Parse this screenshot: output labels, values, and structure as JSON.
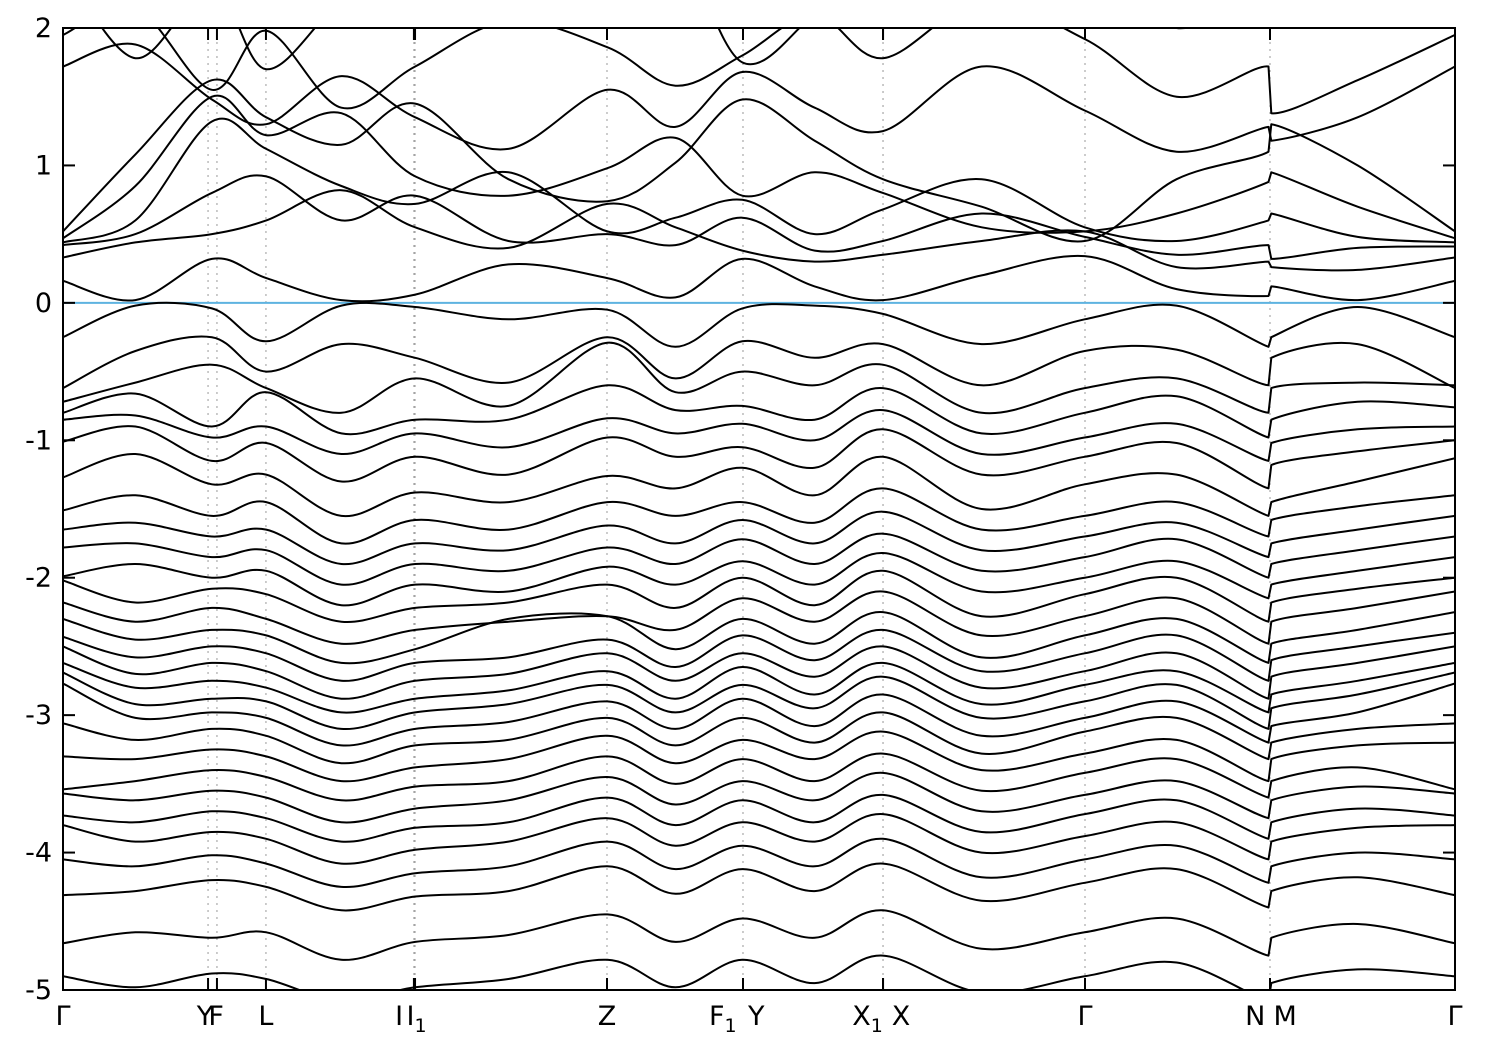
{
  "figure": {
    "kind": "electronic band structure plot (gnuplot style)",
    "background": "#ffffff"
  },
  "chart_data": {
    "type": "line",
    "title": "",
    "xlabel": "",
    "ylabel": "",
    "ylim": [
      -5,
      2
    ],
    "grid": "vertical dashed at high-symmetry points",
    "legend": "none",
    "yticks": [
      2,
      1,
      0,
      -1,
      -2,
      -3,
      -4,
      -5
    ],
    "xticks": [
      {
        "label": "Γ",
        "sub": "",
        "tick_t": 0.0,
        "label_t": 0.0
      },
      {
        "label": "Y",
        "sub": "",
        "tick_t": 0.1042,
        "label_t": 0.102
      },
      {
        "label": "F",
        "sub": "",
        "tick_t": 0.1106,
        "label_t": 0.11
      },
      {
        "label": "L",
        "sub": "",
        "tick_t": 0.1458,
        "label_t": 0.1458
      },
      {
        "label": "I",
        "sub": "",
        "tick_t": 0.2521,
        "label_t": 0.2415
      },
      {
        "label": "I",
        "sub": "1",
        "tick_t": 0.2529,
        "label_t": 0.254
      },
      {
        "label": "Z",
        "sub": "",
        "tick_t": 0.3908,
        "label_t": 0.3908
      },
      {
        "label": "F",
        "sub": "1",
        "tick_t": 0.4885,
        "label_t": 0.474
      },
      {
        "label": "Y",
        "sub": "",
        "tick_t": 0.4885,
        "label_t": 0.498
      },
      {
        "label": "X",
        "sub": "1",
        "tick_t": 0.5891,
        "label_t": 0.578
      },
      {
        "label": "X",
        "sub": "",
        "tick_t": 0.5891,
        "label_t": 0.602
      },
      {
        "label": "Γ",
        "sub": "",
        "tick_t": 0.7342,
        "label_t": 0.7342
      },
      {
        "label": "N",
        "sub": "",
        "tick_t": 0.8671,
        "label_t": 0.8565
      },
      {
        "label": "M",
        "sub": "",
        "tick_t": 0.8671,
        "label_t": 0.878
      },
      {
        "label": "Γ",
        "sub": "",
        "tick_t": 1.0,
        "label_t": 1.0
      }
    ],
    "fermi_level": 0,
    "colors": {
      "band": "#000000",
      "fermi_line": "#5eb3e0",
      "grid": "#9a9a9a",
      "border": "#000000",
      "tick_label": "#000000"
    },
    "band_stations_t": [
      0,
      0.052,
      0.107,
      0.146,
      0.2,
      0.253,
      0.32,
      0.391,
      0.44,
      0.488,
      0.54,
      0.589,
      0.66,
      0.734,
      0.8,
      0.866,
      0.868,
      0.93,
      1.0
    ],
    "bands": [
      [
        2.45,
        1.78,
        2.3,
        1.7,
        2.2,
        2.5,
        2.05,
        2.45,
        2.6,
        1.75,
        2.1,
        2.5,
        2.25,
        2.55,
        2.0,
        2.35,
        2.15,
        2.5,
        2.3
      ],
      [
        1.95,
        2.15,
        1.55,
        1.98,
        1.42,
        1.72,
        2.05,
        1.86,
        1.58,
        1.8,
        2.1,
        1.78,
        2.2,
        1.92,
        1.5,
        1.72,
        1.38,
        1.62,
        1.95
      ],
      [
        1.72,
        1.88,
        1.48,
        1.3,
        1.65,
        1.35,
        1.12,
        1.55,
        1.28,
        1.68,
        1.42,
        1.25,
        1.72,
        1.4,
        1.1,
        1.28,
        1.18,
        1.35,
        1.72
      ],
      [
        0.52,
        1.08,
        1.62,
        1.35,
        1.15,
        1.45,
        0.9,
        0.74,
        1.02,
        1.48,
        1.18,
        0.9,
        0.7,
        0.45,
        0.9,
        1.1,
        1.3,
        1.0,
        0.52
      ],
      [
        0.47,
        0.85,
        1.5,
        1.22,
        1.38,
        0.92,
        0.78,
        0.98,
        1.2,
        0.78,
        0.95,
        0.8,
        0.55,
        0.52,
        0.65,
        0.88,
        0.95,
        0.7,
        0.47
      ],
      [
        0.44,
        0.6,
        1.32,
        1.12,
        0.85,
        0.72,
        0.95,
        0.52,
        0.62,
        0.75,
        0.5,
        0.68,
        0.9,
        0.55,
        0.45,
        0.6,
        0.65,
        0.48,
        0.44
      ],
      [
        0.42,
        0.5,
        0.8,
        0.92,
        0.6,
        0.78,
        0.45,
        0.5,
        0.42,
        0.62,
        0.38,
        0.45,
        0.65,
        0.48,
        0.35,
        0.42,
        0.32,
        0.4,
        0.41
      ],
      [
        0.33,
        0.44,
        0.5,
        0.6,
        0.82,
        0.55,
        0.4,
        0.72,
        0.55,
        0.38,
        0.3,
        0.35,
        0.45,
        0.52,
        0.26,
        0.3,
        0.26,
        0.24,
        0.33
      ],
      [
        0.16,
        0.02,
        0.32,
        0.18,
        0.02,
        0.06,
        0.28,
        0.18,
        0.04,
        0.32,
        0.12,
        0.02,
        0.2,
        0.34,
        0.1,
        0.05,
        0.12,
        0.02,
        0.16
      ],
      [
        -0.25,
        -0.02,
        -0.04,
        -0.28,
        -0.02,
        -0.03,
        -0.12,
        -0.05,
        -0.32,
        -0.04,
        -0.02,
        -0.08,
        -0.3,
        -0.12,
        -0.02,
        -0.32,
        -0.25,
        -0.03,
        -0.25
      ],
      [
        -0.62,
        -0.35,
        -0.25,
        -0.5,
        -0.3,
        -0.4,
        -0.58,
        -0.25,
        -0.55,
        -0.28,
        -0.4,
        -0.3,
        -0.6,
        -0.35,
        -0.34,
        -0.6,
        -0.4,
        -0.3,
        -0.62
      ],
      [
        -0.72,
        -0.58,
        -0.45,
        -0.62,
        -0.8,
        -0.55,
        -0.75,
        -0.29,
        -0.65,
        -0.5,
        -0.6,
        -0.45,
        -0.8,
        -0.62,
        -0.55,
        -0.8,
        -0.62,
        -0.58,
        -0.6
      ],
      [
        -0.8,
        -0.66,
        -0.9,
        -0.65,
        -0.95,
        -0.85,
        -0.85,
        -0.6,
        -0.78,
        -0.75,
        -0.85,
        -0.62,
        -0.95,
        -0.8,
        -0.68,
        -0.98,
        -0.85,
        -0.72,
        -0.76
      ],
      [
        -0.85,
        -0.82,
        -0.98,
        -0.9,
        -1.1,
        -0.95,
        -1.05,
        -0.84,
        -0.95,
        -0.88,
        -1.0,
        -0.78,
        -1.1,
        -0.98,
        -0.88,
        -1.15,
        -1.02,
        -0.92,
        -0.9
      ],
      [
        -1.01,
        -0.9,
        -1.15,
        -1.02,
        -1.3,
        -1.12,
        -1.25,
        -0.98,
        -1.12,
        -1.05,
        -1.2,
        -0.92,
        -1.25,
        -1.12,
        -1.02,
        -1.35,
        -1.18,
        -1.08,
        -1.0
      ],
      [
        -1.27,
        -1.1,
        -1.32,
        -1.25,
        -1.55,
        -1.38,
        -1.45,
        -1.26,
        -1.35,
        -1.2,
        -1.4,
        -1.12,
        -1.5,
        -1.32,
        -1.25,
        -1.55,
        -1.45,
        -1.3,
        -1.13
      ],
      [
        -1.51,
        -1.4,
        -1.55,
        -1.45,
        -1.75,
        -1.58,
        -1.65,
        -1.45,
        -1.55,
        -1.45,
        -1.6,
        -1.35,
        -1.65,
        -1.55,
        -1.45,
        -1.7,
        -1.58,
        -1.48,
        -1.4
      ],
      [
        -1.65,
        -1.6,
        -1.7,
        -1.65,
        -1.9,
        -1.75,
        -1.8,
        -1.62,
        -1.75,
        -1.58,
        -1.75,
        -1.52,
        -1.8,
        -1.7,
        -1.6,
        -1.85,
        -1.75,
        -1.65,
        -1.55
      ],
      [
        -1.78,
        -1.75,
        -1.85,
        -1.8,
        -2.05,
        -1.9,
        -1.95,
        -1.78,
        -1.9,
        -1.72,
        -1.9,
        -1.68,
        -1.95,
        -1.85,
        -1.72,
        -2.0,
        -1.9,
        -1.8,
        -1.7
      ],
      [
        -1.99,
        -1.9,
        -2.0,
        -1.95,
        -2.2,
        -2.05,
        -2.1,
        -1.92,
        -2.05,
        -1.88,
        -2.05,
        -1.82,
        -2.1,
        -2.0,
        -1.88,
        -2.15,
        -2.05,
        -1.95,
        -1.85
      ],
      [
        -2.02,
        -2.18,
        -2.08,
        -2.12,
        -2.32,
        -2.22,
        -2.18,
        -2.05,
        -2.22,
        -2.0,
        -2.2,
        -1.95,
        -2.28,
        -2.12,
        -2.0,
        -2.32,
        -2.18,
        -2.08,
        -2.0
      ],
      [
        -2.18,
        -2.32,
        -2.22,
        -2.3,
        -2.48,
        -2.38,
        -2.32,
        -2.28,
        -2.38,
        -2.15,
        -2.32,
        -2.1,
        -2.42,
        -2.28,
        -2.15,
        -2.48,
        -2.32,
        -2.22,
        -2.1
      ],
      [
        -2.3,
        -2.45,
        -2.38,
        -2.42,
        -2.62,
        -2.52,
        -2.3,
        -2.28,
        -2.52,
        -2.3,
        -2.48,
        -2.25,
        -2.58,
        -2.42,
        -2.3,
        -2.62,
        -2.48,
        -2.38,
        -2.25
      ],
      [
        -2.43,
        -2.58,
        -2.5,
        -2.55,
        -2.75,
        -2.62,
        -2.58,
        -2.45,
        -2.65,
        -2.42,
        -2.6,
        -2.38,
        -2.68,
        -2.55,
        -2.42,
        -2.75,
        -2.6,
        -2.5,
        -2.4
      ],
      [
        -2.5,
        -2.7,
        -2.62,
        -2.68,
        -2.88,
        -2.75,
        -2.7,
        -2.55,
        -2.75,
        -2.55,
        -2.72,
        -2.5,
        -2.8,
        -2.68,
        -2.55,
        -2.88,
        -2.72,
        -2.62,
        -2.5
      ],
      [
        -2.62,
        -2.8,
        -2.75,
        -2.8,
        -2.98,
        -2.88,
        -2.82,
        -2.68,
        -2.88,
        -2.65,
        -2.85,
        -2.62,
        -2.92,
        -2.78,
        -2.68,
        -2.98,
        -2.85,
        -2.75,
        -2.62
      ],
      [
        -2.69,
        -2.92,
        -2.88,
        -2.9,
        -3.1,
        -2.98,
        -2.92,
        -2.78,
        -2.98,
        -2.78,
        -2.95,
        -2.72,
        -3.02,
        -2.9,
        -2.78,
        -3.1,
        -2.95,
        -2.85,
        -2.69
      ],
      [
        -2.77,
        -3.02,
        -2.98,
        -3.02,
        -3.22,
        -3.1,
        -3.05,
        -2.9,
        -3.1,
        -2.88,
        -3.08,
        -2.85,
        -3.15,
        -3.02,
        -2.9,
        -3.2,
        -3.08,
        -2.98,
        -2.77
      ],
      [
        -3.06,
        -3.18,
        -3.1,
        -3.15,
        -3.35,
        -3.22,
        -3.18,
        -3.02,
        -3.22,
        -3.02,
        -3.2,
        -2.98,
        -3.28,
        -3.12,
        -3.02,
        -3.32,
        -3.2,
        -3.1,
        -3.06
      ],
      [
        -3.3,
        -3.32,
        -3.25,
        -3.3,
        -3.48,
        -3.38,
        -3.32,
        -3.15,
        -3.35,
        -3.18,
        -3.32,
        -3.12,
        -3.4,
        -3.28,
        -3.18,
        -3.48,
        -3.32,
        -3.22,
        -3.2
      ],
      [
        -3.54,
        -3.48,
        -3.4,
        -3.45,
        -3.62,
        -3.52,
        -3.48,
        -3.3,
        -3.5,
        -3.32,
        -3.48,
        -3.28,
        -3.55,
        -3.42,
        -3.32,
        -3.6,
        -3.48,
        -3.38,
        -3.54
      ],
      [
        -3.57,
        -3.62,
        -3.55,
        -3.6,
        -3.78,
        -3.68,
        -3.62,
        -3.45,
        -3.65,
        -3.48,
        -3.62,
        -3.42,
        -3.7,
        -3.58,
        -3.48,
        -3.75,
        -3.62,
        -3.52,
        -3.57
      ],
      [
        -3.73,
        -3.78,
        -3.7,
        -3.75,
        -3.92,
        -3.82,
        -3.78,
        -3.6,
        -3.8,
        -3.62,
        -3.78,
        -3.58,
        -3.85,
        -3.72,
        -3.62,
        -3.9,
        -3.78,
        -3.68,
        -3.73
      ],
      [
        -3.8,
        -3.92,
        -3.85,
        -3.9,
        -4.08,
        -3.98,
        -3.92,
        -3.75,
        -3.95,
        -3.78,
        -3.92,
        -3.72,
        -4.0,
        -3.88,
        -3.78,
        -4.05,
        -3.92,
        -3.82,
        -3.8
      ],
      [
        -4.05,
        -4.1,
        -4.02,
        -4.08,
        -4.25,
        -4.15,
        -4.1,
        -3.92,
        -4.12,
        -3.95,
        -4.1,
        -3.9,
        -4.18,
        -4.05,
        -3.95,
        -4.22,
        -4.1,
        -4.0,
        -4.05
      ],
      [
        -4.31,
        -4.28,
        -4.2,
        -4.25,
        -4.42,
        -4.32,
        -4.28,
        -4.1,
        -4.3,
        -4.12,
        -4.28,
        -4.08,
        -4.35,
        -4.22,
        -4.12,
        -4.4,
        -4.28,
        -4.18,
        -4.31
      ],
      [
        -4.66,
        -4.58,
        -4.62,
        -4.58,
        -4.78,
        -4.65,
        -4.6,
        -4.45,
        -4.65,
        -4.48,
        -4.62,
        -4.42,
        -4.7,
        -4.58,
        -4.48,
        -4.75,
        -4.62,
        -4.52,
        -4.66
      ],
      [
        -4.9,
        -4.98,
        -4.88,
        -4.92,
        -5.08,
        -4.98,
        -4.92,
        -4.78,
        -4.98,
        -4.78,
        -4.95,
        -4.75,
        -5.02,
        -4.9,
        -4.8,
        -5.08,
        -4.95,
        -4.85,
        -4.9
      ]
    ]
  }
}
